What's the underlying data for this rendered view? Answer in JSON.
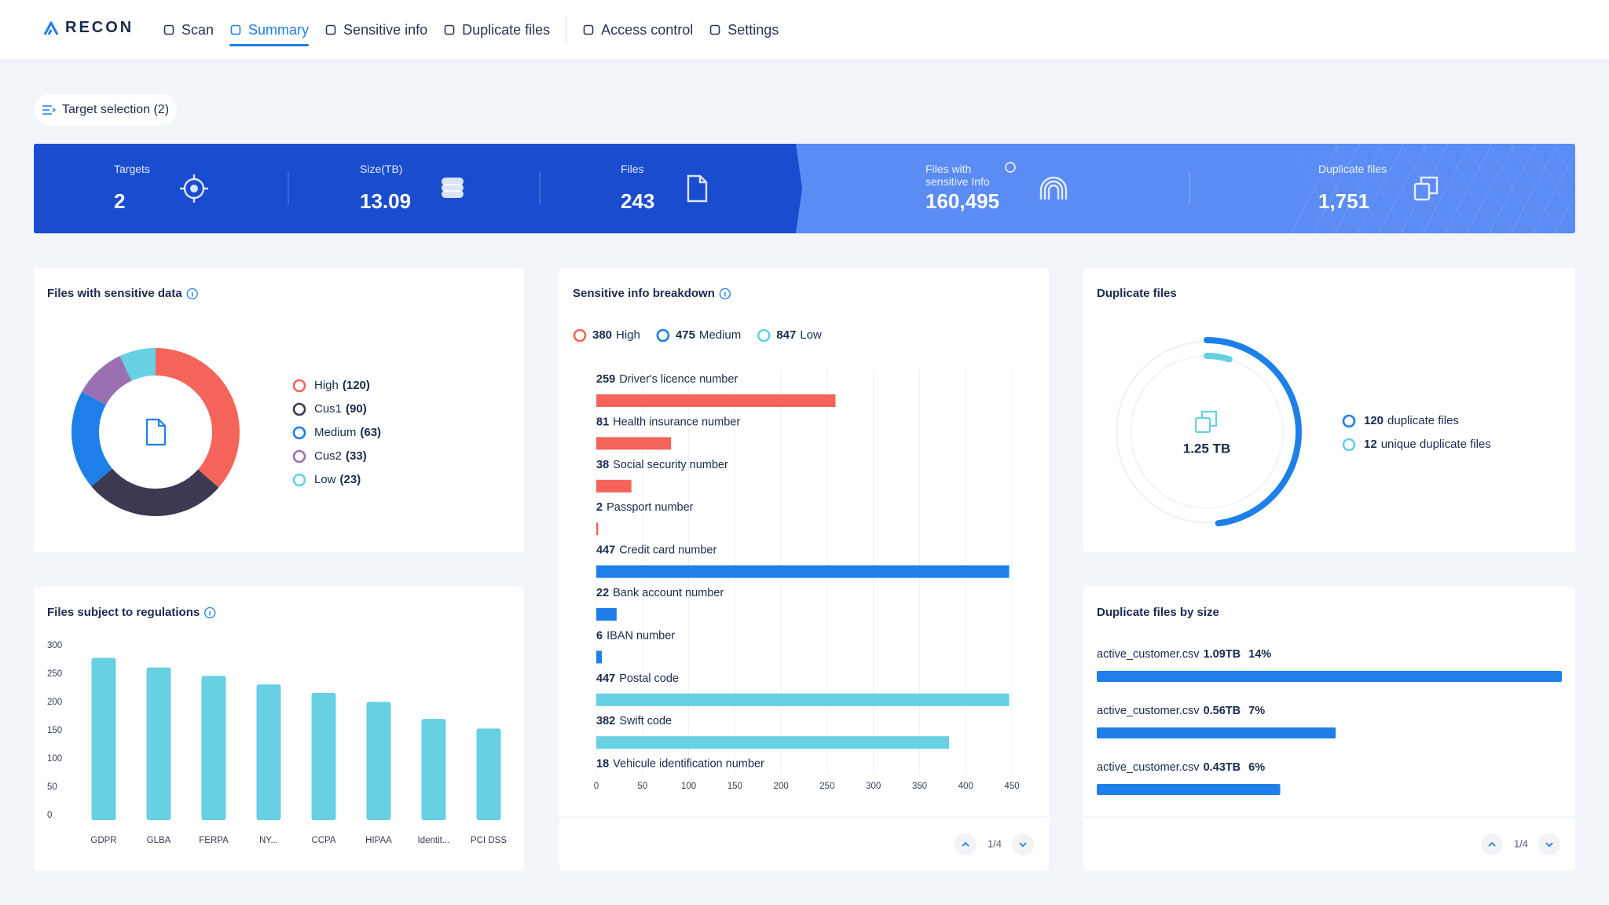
{
  "header": {
    "logo": "RECON",
    "nav": [
      "Scan",
      "Summary",
      "Sensitive info",
      "Duplicate files",
      "Access control",
      "Settings"
    ],
    "active_nav": 1
  },
  "target_selection": "Target selection (2)",
  "stats": [
    {
      "label": "Targets",
      "value": "2"
    },
    {
      "label": "Size(TB)",
      "value": "13.09"
    },
    {
      "label": "Files",
      "value": "243"
    },
    {
      "label": "Files with sensitive Info",
      "value": "160,495"
    },
    {
      "label": "Duplicate files",
      "value": "1,751"
    }
  ],
  "chart_data": [
    {
      "type": "donut",
      "title": "Files with sensitive data",
      "info_icon": true,
      "categories": [
        "High",
        "Cus1",
        "Medium",
        "Cus2",
        "Low"
      ],
      "values": [
        120,
        90,
        63,
        33,
        23
      ],
      "value_labels": [
        "(120)",
        "(90)",
        "(63)",
        "(33)",
        "(23)"
      ],
      "colors": [
        "#f4645a",
        "#3b3a52",
        "#1e7fe9",
        "#9a70b3",
        "#67d0e2"
      ]
    },
    {
      "type": "bar",
      "title": "Files subject to regulations",
      "info_icon": true,
      "categories": [
        "GDPR",
        "GLBA",
        "FERPA",
        "NY...",
        "CCPA",
        "HIPAA",
        "Identit...",
        "PCI DSS"
      ],
      "values": [
        287,
        270,
        255,
        240,
        225,
        209,
        179,
        162
      ],
      "color": "#67d0e2",
      "ylim": [
        0,
        300
      ],
      "yticks": [
        0,
        50,
        100,
        150,
        200,
        250,
        300
      ]
    },
    {
      "type": "hbar",
      "title": "Sensitive info breakdown",
      "info_icon": true,
      "legend": [
        {
          "value": 380,
          "name": "High",
          "color": "#f4645a"
        },
        {
          "value": 475,
          "name": "Medium",
          "color": "#1e7fe9"
        },
        {
          "value": 847,
          "name": "Low",
          "color": "#67d0e2"
        }
      ],
      "categories": [
        "Driver's licence number",
        "Health insurance number",
        "Social security number",
        "Passport number",
        "Credit card number",
        "Bank account number",
        "IBAN number",
        "Postal code",
        "Swift code",
        "Vehicule identification number"
      ],
      "values": [
        259,
        81,
        38,
        2,
        447,
        22,
        6,
        447,
        382,
        18
      ],
      "colors": [
        "#f4645a",
        "#f4645a",
        "#f4645a",
        "#f4645a",
        "#1e7fe9",
        "#1e7fe9",
        "#1e7fe9",
        "#67d0e2",
        "#67d0e2",
        "#67d0e2"
      ],
      "xlim": [
        0,
        450
      ],
      "xticks": [
        0,
        50,
        100,
        150,
        200,
        250,
        300,
        350,
        400,
        450
      ],
      "grid": true,
      "page": "1/4"
    },
    {
      "type": "radial",
      "title": "Duplicate files",
      "info_icon": false,
      "center_label": "1.25 TB",
      "rlim": [
        0,
        250
      ],
      "series": [
        {
          "name": "duplicate files",
          "value": 120,
          "color": "#1e7fe9"
        },
        {
          "name": "unique duplicate files",
          "value": 12,
          "color": "#67d0e2"
        }
      ]
    },
    {
      "type": "progress",
      "title": "Duplicate files by size",
      "info_icon": false,
      "categories": [
        "active_customer.csv",
        "active_customer.csv",
        "active_customer.csv"
      ],
      "values": [
        1.09,
        0.56,
        0.43
      ],
      "value_labels": [
        "1.09TB",
        "0.56TB",
        "0.43TB"
      ],
      "shares": [
        "14%",
        "7%",
        "6%"
      ],
      "color": "#1e7fe9",
      "page": "1/4"
    }
  ]
}
